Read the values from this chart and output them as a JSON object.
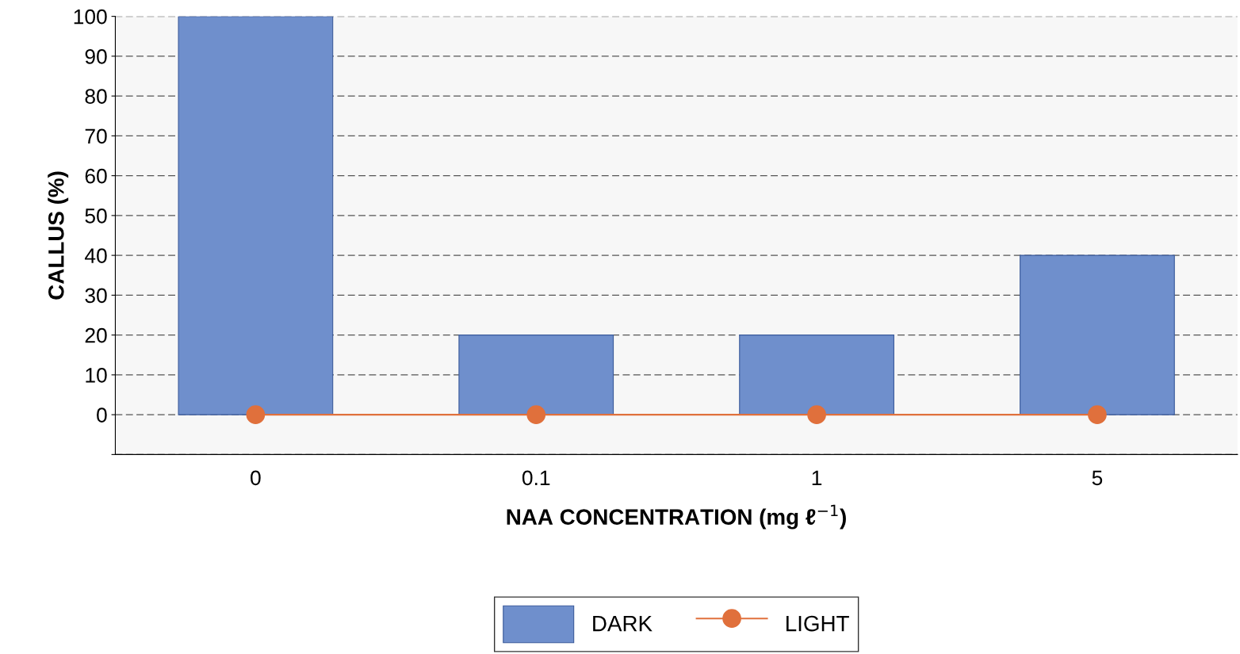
{
  "chart_data": {
    "type": "bar",
    "xlabel": "NAA CONCENTRATION (mg ℓ$^{−1}$)",
    "ylabel": "CALLUS (%)",
    "categories": [
      "0",
      "0.1",
      "1",
      "5"
    ],
    "series": [
      {
        "name": "DARK",
        "color": "#6f8fcc",
        "values": [
          100,
          20,
          20,
          40
        ]
      },
      {
        "name": "LIGHT",
        "type": "line",
        "color": "#e0703c",
        "values": [
          0,
          0,
          0,
          0
        ],
        "marker": "circle"
      }
    ],
    "ylim": [
      -10,
      100
    ],
    "yticks": [
      {
        "value": -10,
        "label": null
      },
      0,
      10,
      20,
      30,
      40,
      50,
      60,
      70,
      80,
      90,
      100
    ],
    "grid": "y",
    "legend": "bottom"
  }
}
